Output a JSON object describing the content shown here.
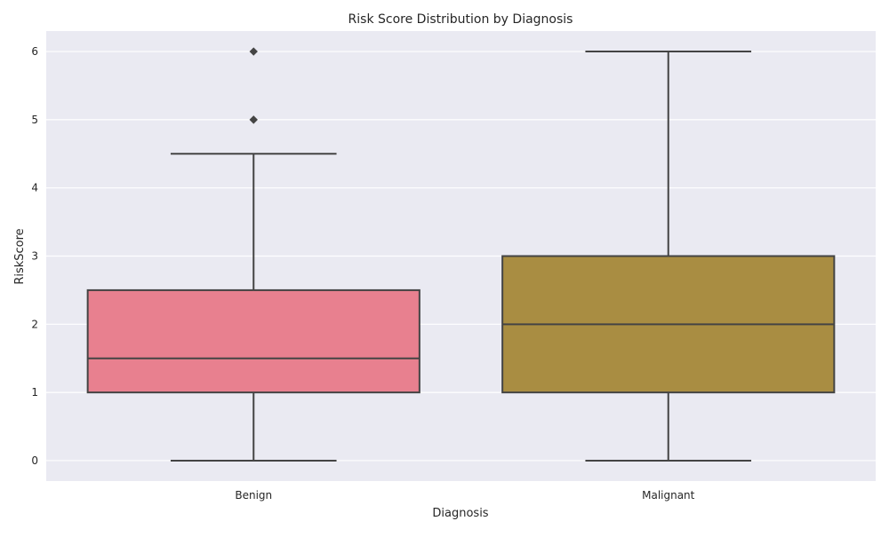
{
  "chart_data": {
    "type": "box",
    "title": "Risk Score Distribution by Diagnosis",
    "xlabel": "Diagnosis",
    "ylabel": "RiskScore",
    "categories": [
      "Benign",
      "Malignant"
    ],
    "ylim": [
      -0.3,
      6.3
    ],
    "yticks": [
      "0",
      "1",
      "2",
      "3",
      "4",
      "5",
      "6"
    ],
    "grid": true,
    "legend": "none",
    "boxes": [
      {
        "category": "Benign",
        "whisker_low": 0,
        "q1": 1,
        "median": 1.5,
        "q3": 2.5,
        "whisker_high": 4.5,
        "outliers": [
          5,
          6
        ],
        "color": "#e8808f"
      },
      {
        "category": "Malignant",
        "whisker_low": 0,
        "q1": 1,
        "median": 2,
        "q3": 3,
        "whisker_high": 6,
        "outliers": [],
        "color": "#a98d42"
      }
    ],
    "colors": {
      "background": "#eaeaf2",
      "grid": "#ffffff",
      "line": "#444444"
    }
  }
}
